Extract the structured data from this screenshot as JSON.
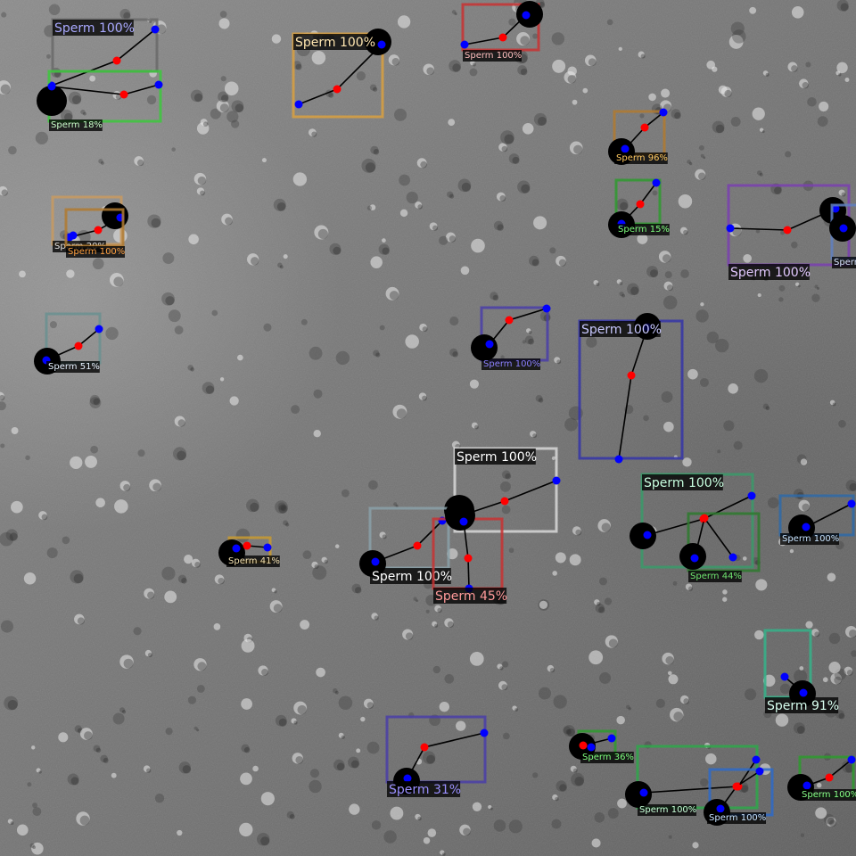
{
  "image": {
    "subject": "microscope field with detected sperm",
    "class_name": "Sperm",
    "keypoint_colors": {
      "head": "#0000ff",
      "mid": "#ff0000",
      "line": "#000000",
      "blob": "#000000"
    }
  },
  "detections": [
    {
      "label": "Sperm 100%",
      "box_color": "#6a6a6a",
      "text_color": "#a9a9ff",
      "big": true
    },
    {
      "label": "Sperm 18%",
      "box_color": "#3cc83c",
      "text_color": "#c8ffc8",
      "big": false
    },
    {
      "label": "Sperm 100%",
      "box_color": "#d9a040",
      "text_color": "#ffe6b0",
      "big": true
    },
    {
      "label": "Sperm 100%",
      "box_color": "#c83232",
      "text_color": "#ffbcbc",
      "big": false
    },
    {
      "label": "Sperm 96%",
      "box_color": "#b07a30",
      "text_color": "#ffc860",
      "big": false
    },
    {
      "label": "Sperm 15%",
      "box_color": "#2f9a2f",
      "text_color": "#7fff7f",
      "big": false
    },
    {
      "label": "Sperm 100%",
      "box_color": "#7a3fb0",
      "text_color": "#e2c8ff",
      "big": true
    },
    {
      "label": "Sperm",
      "box_color": "#6080c0",
      "text_color": "#d8e4ff",
      "big": false
    },
    {
      "label": "Sperm 20%",
      "box_color": "#c89a60",
      "text_color": "#e0e0e0",
      "big": false
    },
    {
      "label": "Sperm 100%",
      "box_color": "#b07a30",
      "text_color": "#ffa040",
      "big": false
    },
    {
      "label": "Sperm 51%",
      "box_color": "#6a9090",
      "text_color": "#e6f2ff",
      "big": false
    },
    {
      "label": "Sperm 100%",
      "box_color": "#4a3ea8",
      "text_color": "#8a7fff",
      "big": false
    },
    {
      "label": "Sperm 100%",
      "box_color": "#3535a8",
      "text_color": "#c8c8ff",
      "big": true
    },
    {
      "label": "Sperm 100%",
      "box_color": "#d8d8d8",
      "text_color": "#ffffff",
      "big": true
    },
    {
      "label": "Sperm 100%",
      "box_color": "#3a9a6a",
      "text_color": "#c8ffe0",
      "big": true
    },
    {
      "label": "Sperm 44%",
      "box_color": "#2e7a2e",
      "text_color": "#6fe66f",
      "big": false
    },
    {
      "label": "Sperm 100%",
      "box_color": "#2e6aa8",
      "text_color": "#c8e4ff",
      "big": false
    },
    {
      "label": "Sperm 41%",
      "box_color": "#c89a30",
      "text_color": "#f2e0b0",
      "big": false
    },
    {
      "label": "Sperm 100%",
      "box_color": "#8aa0a8",
      "text_color": "#ffffff",
      "big": true
    },
    {
      "label": "Sperm 45%",
      "box_color": "#c83232",
      "text_color": "#ff9a9a",
      "big": true
    },
    {
      "label": "Sperm 91%",
      "box_color": "#35b38a",
      "text_color": "#d8fff0",
      "big": true
    },
    {
      "label": "Sperm 31%",
      "box_color": "#4a3ea8",
      "text_color": "#9a8fff",
      "big": true
    },
    {
      "label": "Sperm 36%",
      "box_color": "#2e9a2e",
      "text_color": "#7fff7f",
      "big": false
    },
    {
      "label": "Sperm 100%",
      "box_color": "#2ea84a",
      "text_color": "#c8ffd8",
      "big": false
    },
    {
      "label": "Sperm 100%",
      "box_color": "#2e6ac8",
      "text_color": "#c8e4ff",
      "big": false
    },
    {
      "label": "Sperm 100%",
      "box_color": "#2e9a2e",
      "text_color": "#8aff8a",
      "big": false
    }
  ]
}
